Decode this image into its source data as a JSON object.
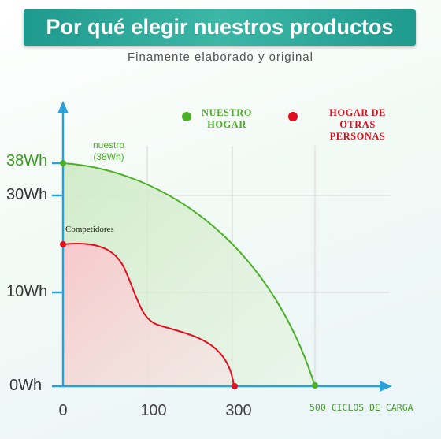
{
  "header": {
    "title": "Por qué elegir nuestros productos",
    "subtitle": "Finamente elaborado y original"
  },
  "legend": [
    {
      "label": "NUESTRO HOGAR"
    },
    {
      "label": "HOGAR DE OTRAS PERSONAS"
    }
  ],
  "axes": {
    "y_labels": [
      "38Wh",
      "30Wh",
      "10Wh",
      "0Wh"
    ],
    "x_labels": [
      "0",
      "100",
      "300"
    ],
    "x_title": "500 CICLOS DE CARGA"
  },
  "annotations": {
    "ours": "nuestro (38Wh)",
    "competitors": "Competidores"
  }
}
